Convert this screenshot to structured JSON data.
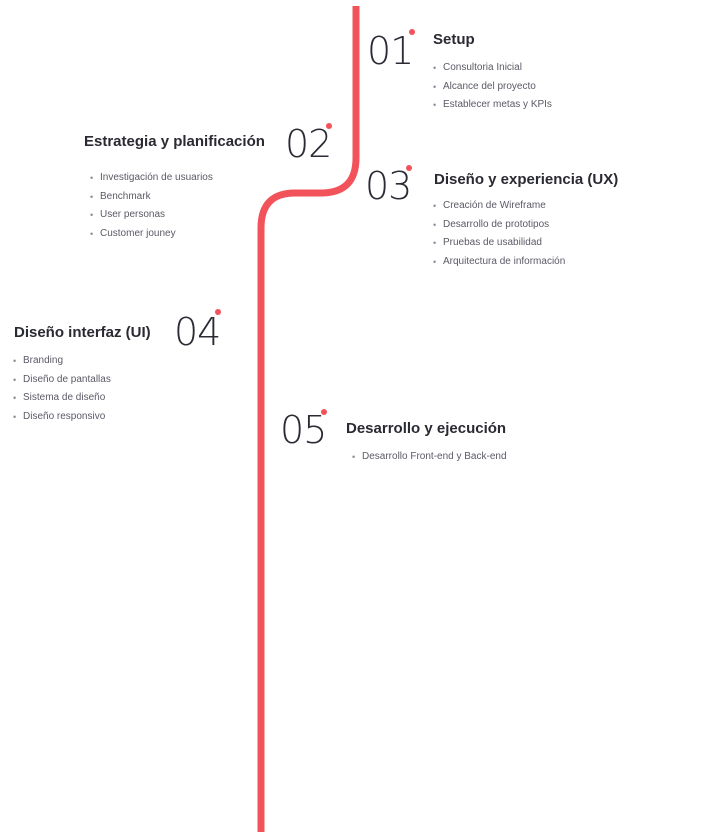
{
  "steps": [
    {
      "number": "01",
      "title": "Setup",
      "items": [
        "Consultoria Inicial",
        "Alcance del proyecto",
        "Establecer metas y KPIs"
      ]
    },
    {
      "number": "02",
      "title": "Estrategia y planificación",
      "items": [
        "Investigación de usuarios",
        "Benchmark",
        "User personas",
        "Customer jouney"
      ]
    },
    {
      "number": "03",
      "title": "Diseño y experiencia (UX)",
      "items": [
        "Creación de Wireframe",
        "Desarrollo de prototipos",
        "Pruebas de usabilidad",
        "Arquitectura de información"
      ]
    },
    {
      "number": "04",
      "title": "Diseño interfaz (UI)",
      "items": [
        "Branding",
        "Diseño de pantallas",
        "Sistema de diseño",
        "Diseño responsivo"
      ]
    },
    {
      "number": "05",
      "title": "Desarrollo y ejecución",
      "items": [
        "Desarrollo Front-end y Back-end"
      ]
    }
  ],
  "colors": {
    "accent": "#f2535a",
    "text": "#2a2a33",
    "muted": "#5a5a66"
  }
}
